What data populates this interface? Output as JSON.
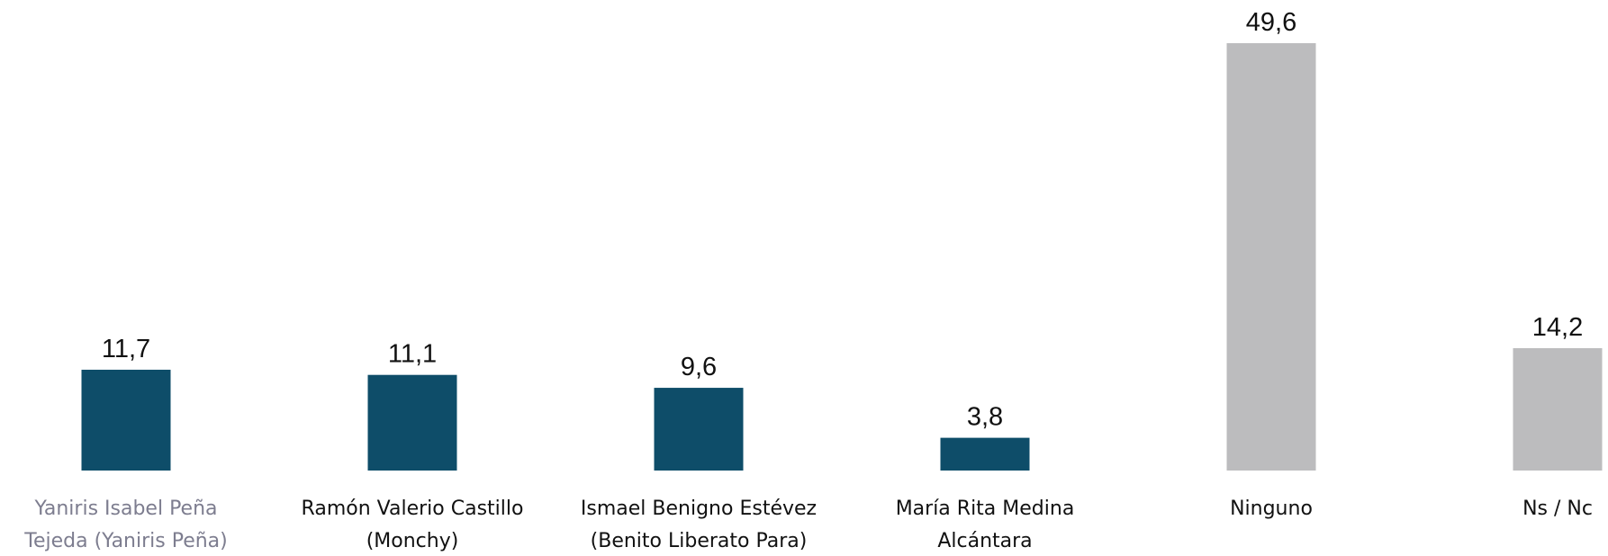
{
  "chart_data": {
    "type": "bar",
    "categories": [
      [
        "Yaniris Isabel Peña",
        "Tejeda (Yaniris Peña)"
      ],
      [
        "Ramón Valerio Castillo",
        "(Monchy)"
      ],
      [
        "Ismael Benigno Estévez",
        "(Benito Liberato Para)"
      ],
      [
        "María Rita Medina",
        "Alcántara"
      ],
      [
        "Ninguno"
      ],
      [
        "Ns / Nc"
      ]
    ],
    "values": [
      11.7,
      11.1,
      9.6,
      3.8,
      49.6,
      14.2
    ],
    "value_labels": [
      "11,7",
      "11,1",
      "9,6",
      "3,8",
      "49,6",
      "14,2"
    ],
    "colors": [
      "#0e4d69",
      "#0e4d69",
      "#0e4d69",
      "#0e4d69",
      "#bcbcbe",
      "#bcbcbe"
    ]
  }
}
